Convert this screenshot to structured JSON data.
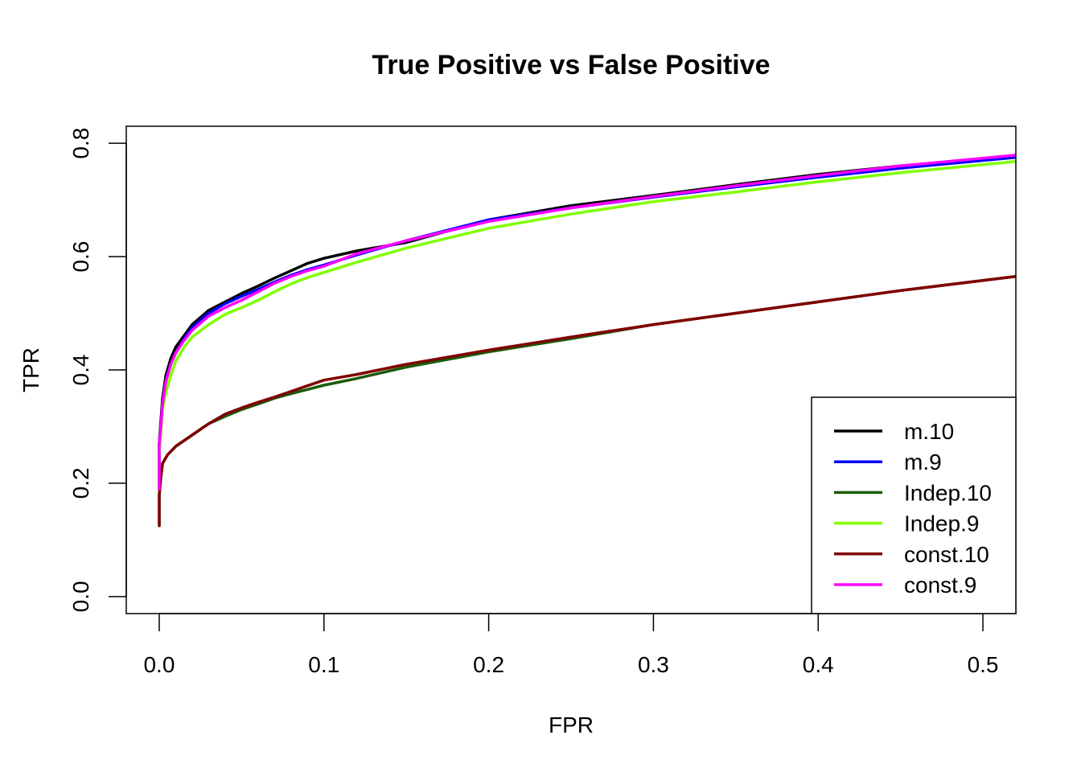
{
  "chart_data": {
    "type": "line",
    "title": "True Positive vs False Positive",
    "xlabel": "FPR",
    "ylabel": "TPR",
    "xlim": [
      -0.02,
      0.52
    ],
    "ylim": [
      -0.03,
      0.83
    ],
    "xticks": [
      0.0,
      0.1,
      0.2,
      0.3,
      0.4,
      0.5
    ],
    "xtick_labels": [
      "0.0",
      "0.1",
      "0.2",
      "0.3",
      "0.4",
      "0.5"
    ],
    "yticks": [
      0.0,
      0.2,
      0.4,
      0.6,
      0.8
    ],
    "ytick_labels": [
      "0.0",
      "0.2",
      "0.4",
      "0.6",
      "0.8"
    ],
    "grid": false,
    "legend_position": "bottom-right",
    "series": [
      {
        "name": "m.10",
        "color": "#000000",
        "x": [
          0.0,
          0.0,
          0.001,
          0.002,
          0.004,
          0.007,
          0.01,
          0.015,
          0.02,
          0.03,
          0.04,
          0.05,
          0.06,
          0.07,
          0.08,
          0.09,
          0.1,
          0.12,
          0.15,
          0.2,
          0.25,
          0.3,
          0.35,
          0.4,
          0.45,
          0.52
        ],
        "y": [
          0.19,
          0.27,
          0.31,
          0.35,
          0.39,
          0.42,
          0.44,
          0.46,
          0.48,
          0.505,
          0.52,
          0.535,
          0.548,
          0.562,
          0.575,
          0.588,
          0.597,
          0.61,
          0.625,
          0.665,
          0.69,
          0.708,
          0.727,
          0.745,
          0.76,
          0.777
        ]
      },
      {
        "name": "m.9",
        "color": "#0000ff",
        "x": [
          0.0,
          0.0,
          0.001,
          0.002,
          0.004,
          0.007,
          0.01,
          0.015,
          0.02,
          0.03,
          0.04,
          0.05,
          0.06,
          0.07,
          0.08,
          0.09,
          0.1,
          0.12,
          0.15,
          0.2,
          0.25,
          0.3,
          0.35,
          0.4,
          0.45,
          0.52
        ],
        "y": [
          0.19,
          0.27,
          0.3,
          0.34,
          0.38,
          0.41,
          0.43,
          0.455,
          0.475,
          0.5,
          0.517,
          0.53,
          0.542,
          0.555,
          0.567,
          0.577,
          0.585,
          0.603,
          0.628,
          0.665,
          0.686,
          0.705,
          0.723,
          0.74,
          0.756,
          0.775
        ]
      },
      {
        "name": "Indep.10",
        "color": "#1a5c0a",
        "x": [
          0.0,
          0.0,
          0.001,
          0.002,
          0.005,
          0.01,
          0.02,
          0.03,
          0.04,
          0.05,
          0.06,
          0.07,
          0.08,
          0.1,
          0.12,
          0.15,
          0.2,
          0.25,
          0.3,
          0.35,
          0.4,
          0.45,
          0.52
        ],
        "y": [
          0.125,
          0.18,
          0.21,
          0.235,
          0.25,
          0.265,
          0.285,
          0.305,
          0.318,
          0.33,
          0.34,
          0.35,
          0.358,
          0.373,
          0.385,
          0.405,
          0.432,
          0.455,
          0.48,
          0.5,
          0.52,
          0.54,
          0.565
        ]
      },
      {
        "name": "Indep.9",
        "color": "#7fff00",
        "x": [
          0.0,
          0.0,
          0.001,
          0.002,
          0.004,
          0.007,
          0.01,
          0.015,
          0.02,
          0.03,
          0.04,
          0.05,
          0.06,
          0.07,
          0.08,
          0.09,
          0.1,
          0.12,
          0.15,
          0.2,
          0.25,
          0.3,
          0.35,
          0.4,
          0.45,
          0.52
        ],
        "y": [
          0.19,
          0.25,
          0.29,
          0.33,
          0.36,
          0.39,
          0.415,
          0.44,
          0.458,
          0.48,
          0.498,
          0.51,
          0.523,
          0.538,
          0.552,
          0.563,
          0.572,
          0.59,
          0.615,
          0.65,
          0.675,
          0.697,
          0.714,
          0.732,
          0.748,
          0.768
        ]
      },
      {
        "name": "const.10",
        "color": "#800000",
        "x": [
          0.0,
          0.0,
          0.001,
          0.002,
          0.005,
          0.01,
          0.02,
          0.03,
          0.04,
          0.05,
          0.06,
          0.07,
          0.08,
          0.09,
          0.1,
          0.12,
          0.15,
          0.2,
          0.25,
          0.3,
          0.35,
          0.4,
          0.45,
          0.52
        ],
        "y": [
          0.125,
          0.18,
          0.21,
          0.235,
          0.25,
          0.265,
          0.285,
          0.305,
          0.322,
          0.333,
          0.343,
          0.352,
          0.362,
          0.372,
          0.382,
          0.392,
          0.41,
          0.435,
          0.458,
          0.48,
          0.5,
          0.52,
          0.54,
          0.565
        ]
      },
      {
        "name": "const.9",
        "color": "#ff00ff",
        "x": [
          0.0,
          0.0,
          0.001,
          0.002,
          0.004,
          0.007,
          0.01,
          0.015,
          0.02,
          0.03,
          0.04,
          0.05,
          0.06,
          0.07,
          0.08,
          0.09,
          0.1,
          0.12,
          0.15,
          0.2,
          0.25,
          0.3,
          0.35,
          0.4,
          0.45,
          0.52
        ],
        "y": [
          0.19,
          0.27,
          0.3,
          0.34,
          0.38,
          0.41,
          0.43,
          0.452,
          0.47,
          0.495,
          0.51,
          0.523,
          0.538,
          0.553,
          0.565,
          0.575,
          0.583,
          0.605,
          0.628,
          0.662,
          0.686,
          0.706,
          0.725,
          0.743,
          0.76,
          0.779
        ]
      }
    ]
  }
}
